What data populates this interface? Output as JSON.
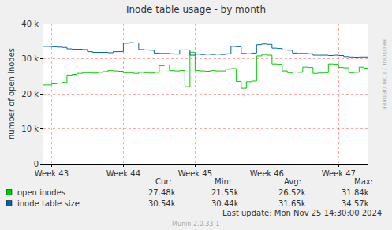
{
  "chart_data": {
    "type": "line",
    "title": "Inode table usage - by month",
    "y_label": "number of open inodes",
    "x": [
      -0.8,
      -0.5,
      0,
      0.5,
      1,
      1.5,
      2,
      2.5,
      3,
      3.5,
      4,
      4.5,
      5,
      5.5,
      6,
      6.5,
      7,
      7.5,
      8,
      8.5,
      9,
      9.5,
      10,
      10.5,
      11,
      11.5,
      12,
      12.5,
      13,
      13.5,
      14,
      14.5,
      15,
      15.5,
      16,
      16.5,
      17,
      17.5,
      18,
      18.5,
      19,
      19.5,
      20,
      20.5,
      21,
      21.5,
      22,
      22.5,
      23,
      23.5,
      24,
      24.5,
      25,
      25.5,
      26,
      26.5,
      27,
      27.5,
      28,
      28.5,
      29,
      29.5,
      30,
      30.5,
      30.9
    ],
    "xlim": [
      -0.8,
      30.9
    ],
    "xticks": [
      {
        "value": 0,
        "label": "Week 43"
      },
      {
        "value": 7,
        "label": "Week 44"
      },
      {
        "value": 14,
        "label": "Week 45"
      },
      {
        "value": 21,
        "label": "Week 46"
      },
      {
        "value": 28,
        "label": "Week 47"
      }
    ],
    "ylim": [
      0,
      40000
    ],
    "yticks": [
      0,
      {
        "value": 10000,
        "label": "10 k"
      },
      {
        "value": 20000,
        "label": "20 k"
      },
      {
        "value": 30000,
        "label": "30 k"
      },
      {
        "value": 40000,
        "label": "40 k"
      }
    ],
    "grid": true,
    "legend": "bottom",
    "line_style": "step",
    "legend_columns": [
      "Cur:",
      "Min:",
      "Avg:",
      "Max:"
    ],
    "series": [
      {
        "name": "open inodes",
        "color": "#00CC00",
        "values": [
          22500,
          22500,
          22800,
          23000,
          23200,
          25300,
          25500,
          25800,
          26000,
          26000,
          25900,
          26100,
          26300,
          26600,
          26500,
          26400,
          26000,
          26000,
          25800,
          26100,
          26000,
          25900,
          26100,
          28000,
          28200,
          26600,
          26500,
          26600,
          22000,
          31840,
          26600,
          26500,
          26400,
          26600,
          26500,
          26500,
          27000,
          27200,
          23500,
          21550,
          23400,
          23600,
          30800,
          31200,
          31000,
          28500,
          28400,
          26500,
          26000,
          26200,
          26100,
          27600,
          27500,
          25800,
          25900,
          26000,
          28500,
          28400,
          27500,
          27400,
          26000,
          26100,
          27600,
          27300,
          27480
        ],
        "stats": [
          "27.48k",
          "21.55k",
          "26.52k",
          "31.84k"
        ]
      },
      {
        "name": "inode table size",
        "color": "#0066B3",
        "values": [
          33500,
          33500,
          33400,
          33300,
          33200,
          32800,
          32700,
          32700,
          32600,
          32000,
          31800,
          31800,
          31800,
          31700,
          32000,
          32000,
          34400,
          34570,
          34500,
          32600,
          32500,
          32400,
          31600,
          31500,
          31500,
          31400,
          31300,
          32500,
          32500,
          31000,
          31300,
          31200,
          31300,
          31200,
          31300,
          31200,
          31400,
          33500,
          33400,
          31500,
          31400,
          31600,
          34000,
          34200,
          34100,
          33000,
          32900,
          32500,
          32400,
          31600,
          31500,
          31500,
          31400,
          31000,
          31000,
          31000,
          30900,
          31000,
          30900,
          30600,
          30500,
          30440,
          30500,
          30500,
          30540
        ],
        "stats": [
          "30.54k",
          "30.44k",
          "31.65k",
          "34.57k"
        ]
      }
    ],
    "footer": "Last update: Mon Nov 25 14:30:00 2024",
    "generator": "Munin 2.0.33-1",
    "watermark": "RRDTOOL / TOBI OETIKER"
  }
}
